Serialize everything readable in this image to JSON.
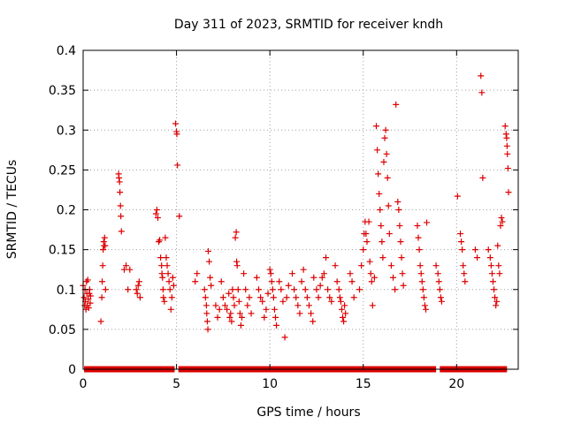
{
  "chart_data": {
    "type": "scatter",
    "title": "Day 311 of 2023, SRMTID for receiver kndh",
    "xlabel": "GPS time / hours",
    "ylabel": "SRMTID / TECUs",
    "xlim": [
      0,
      23.3
    ],
    "ylim": [
      0,
      0.4
    ],
    "xticks": [
      0,
      5,
      10,
      15,
      20
    ],
    "xtick_labels": [
      "0",
      "5",
      "10",
      "15",
      "20"
    ],
    "yticks": [
      0,
      0.05,
      0.1,
      0.15,
      0.2,
      0.25,
      0.3,
      0.35,
      0.4
    ],
    "ytick_labels": [
      "0",
      "0.05",
      "0.1",
      "0.15",
      "0.2",
      "0.25",
      "0.3",
      "0.35",
      "0.4"
    ],
    "grid": true,
    "marker": "plus",
    "color": "#dd0000",
    "zero_band": [
      [
        0.05,
        4.9
      ],
      [
        5.1,
        18.9
      ],
      [
        19.1,
        22.7
      ]
    ],
    "series": [
      {
        "name": "SRMTID",
        "points": [
          [
            0.0,
            0.105
          ],
          [
            0.05,
            0.09
          ],
          [
            0.08,
            0.08
          ],
          [
            0.1,
            0.1
          ],
          [
            0.12,
            0.085
          ],
          [
            0.15,
            0.075
          ],
          [
            0.18,
            0.11
          ],
          [
            0.2,
            0.095
          ],
          [
            0.22,
            0.08
          ],
          [
            0.25,
            0.112
          ],
          [
            0.28,
            0.088
          ],
          [
            0.3,
            0.077
          ],
          [
            0.33,
            0.095
          ],
          [
            0.35,
            0.1
          ],
          [
            0.38,
            0.083
          ],
          [
            0.4,
            0.092
          ],
          [
            0.95,
            0.06
          ],
          [
            1.0,
            0.09
          ],
          [
            1.02,
            0.11
          ],
          [
            1.05,
            0.13
          ],
          [
            1.07,
            0.15
          ],
          [
            1.1,
            0.16
          ],
          [
            1.12,
            0.155
          ],
          [
            1.15,
            0.165
          ],
          [
            1.18,
            0.155
          ],
          [
            1.2,
            0.1
          ],
          [
            1.9,
            0.245
          ],
          [
            1.92,
            0.24
          ],
          [
            1.95,
            0.235
          ],
          [
            1.97,
            0.222
          ],
          [
            2.0,
            0.205
          ],
          [
            2.02,
            0.192
          ],
          [
            2.05,
            0.173
          ],
          [
            2.2,
            0.125
          ],
          [
            2.3,
            0.13
          ],
          [
            2.4,
            0.1
          ],
          [
            2.5,
            0.125
          ],
          [
            2.85,
            0.1
          ],
          [
            2.9,
            0.095
          ],
          [
            2.95,
            0.105
          ],
          [
            3.0,
            0.11
          ],
          [
            3.05,
            0.09
          ],
          [
            3.9,
            0.195
          ],
          [
            3.95,
            0.2
          ],
          [
            4.0,
            0.19
          ],
          [
            4.05,
            0.16
          ],
          [
            4.1,
            0.162
          ],
          [
            4.15,
            0.14
          ],
          [
            4.2,
            0.13
          ],
          [
            4.22,
            0.12
          ],
          [
            4.25,
            0.115
          ],
          [
            4.28,
            0.1
          ],
          [
            4.3,
            0.09
          ],
          [
            4.35,
            0.085
          ],
          [
            4.4,
            0.165
          ],
          [
            4.45,
            0.14
          ],
          [
            4.5,
            0.13
          ],
          [
            4.55,
            0.12
          ],
          [
            4.6,
            0.11
          ],
          [
            4.65,
            0.1
          ],
          [
            4.7,
            0.075
          ],
          [
            4.75,
            0.09
          ],
          [
            4.8,
            0.115
          ],
          [
            4.85,
            0.105
          ],
          [
            4.95,
            0.308
          ],
          [
            5.0,
            0.298
          ],
          [
            5.02,
            0.295
          ],
          [
            5.05,
            0.256
          ],
          [
            5.15,
            0.192
          ],
          [
            6.0,
            0.11
          ],
          [
            6.1,
            0.12
          ],
          [
            6.5,
            0.1
          ],
          [
            6.55,
            0.09
          ],
          [
            6.6,
            0.08
          ],
          [
            6.62,
            0.07
          ],
          [
            6.65,
            0.06
          ],
          [
            6.68,
            0.05
          ],
          [
            6.7,
            0.148
          ],
          [
            6.75,
            0.135
          ],
          [
            6.8,
            0.115
          ],
          [
            6.85,
            0.105
          ],
          [
            7.1,
            0.08
          ],
          [
            7.2,
            0.065
          ],
          [
            7.3,
            0.075
          ],
          [
            7.4,
            0.11
          ],
          [
            7.5,
            0.09
          ],
          [
            7.6,
            0.08
          ],
          [
            7.7,
            0.075
          ],
          [
            7.8,
            0.095
          ],
          [
            7.85,
            0.065
          ],
          [
            7.9,
            0.07
          ],
          [
            7.95,
            0.06
          ],
          [
            8.0,
            0.1
          ],
          [
            8.05,
            0.09
          ],
          [
            8.1,
            0.08
          ],
          [
            8.15,
            0.165
          ],
          [
            8.2,
            0.172
          ],
          [
            8.22,
            0.135
          ],
          [
            8.25,
            0.13
          ],
          [
            8.3,
            0.1
          ],
          [
            8.35,
            0.085
          ],
          [
            8.4,
            0.07
          ],
          [
            8.45,
            0.055
          ],
          [
            8.5,
            0.065
          ],
          [
            8.6,
            0.12
          ],
          [
            8.7,
            0.1
          ],
          [
            8.8,
            0.08
          ],
          [
            8.9,
            0.09
          ],
          [
            9.0,
            0.07
          ],
          [
            9.3,
            0.115
          ],
          [
            9.4,
            0.1
          ],
          [
            9.5,
            0.09
          ],
          [
            9.6,
            0.085
          ],
          [
            9.7,
            0.065
          ],
          [
            9.8,
            0.075
          ],
          [
            9.9,
            0.095
          ],
          [
            10.0,
            0.125
          ],
          [
            10.05,
            0.12
          ],
          [
            10.1,
            0.11
          ],
          [
            10.15,
            0.1
          ],
          [
            10.2,
            0.09
          ],
          [
            10.25,
            0.075
          ],
          [
            10.3,
            0.065
          ],
          [
            10.35,
            0.055
          ],
          [
            10.5,
            0.11
          ],
          [
            10.6,
            0.1
          ],
          [
            10.7,
            0.085
          ],
          [
            10.8,
            0.04
          ],
          [
            10.9,
            0.09
          ],
          [
            11.0,
            0.105
          ],
          [
            11.2,
            0.12
          ],
          [
            11.3,
            0.1
          ],
          [
            11.4,
            0.09
          ],
          [
            11.5,
            0.08
          ],
          [
            11.6,
            0.07
          ],
          [
            11.7,
            0.11
          ],
          [
            11.8,
            0.125
          ],
          [
            11.9,
            0.1
          ],
          [
            12.0,
            0.09
          ],
          [
            12.1,
            0.08
          ],
          [
            12.2,
            0.07
          ],
          [
            12.3,
            0.06
          ],
          [
            12.35,
            0.115
          ],
          [
            12.5,
            0.1
          ],
          [
            12.6,
            0.09
          ],
          [
            12.7,
            0.105
          ],
          [
            12.8,
            0.115
          ],
          [
            12.9,
            0.12
          ],
          [
            13.0,
            0.14
          ],
          [
            13.1,
            0.1
          ],
          [
            13.2,
            0.09
          ],
          [
            13.3,
            0.085
          ],
          [
            13.5,
            0.13
          ],
          [
            13.6,
            0.11
          ],
          [
            13.7,
            0.1
          ],
          [
            13.75,
            0.09
          ],
          [
            13.8,
            0.085
          ],
          [
            13.85,
            0.075
          ],
          [
            13.9,
            0.065
          ],
          [
            13.95,
            0.06
          ],
          [
            14.0,
            0.08
          ],
          [
            14.05,
            0.07
          ],
          [
            14.3,
            0.12
          ],
          [
            14.4,
            0.11
          ],
          [
            14.5,
            0.09
          ],
          [
            14.8,
            0.1
          ],
          [
            14.9,
            0.13
          ],
          [
            15.0,
            0.15
          ],
          [
            15.05,
            0.17
          ],
          [
            15.1,
            0.185
          ],
          [
            15.15,
            0.17
          ],
          [
            15.2,
            0.16
          ],
          [
            15.3,
            0.185
          ],
          [
            15.35,
            0.135
          ],
          [
            15.4,
            0.12
          ],
          [
            15.45,
            0.11
          ],
          [
            15.5,
            0.08
          ],
          [
            15.6,
            0.115
          ],
          [
            15.7,
            0.305
          ],
          [
            15.75,
            0.275
          ],
          [
            15.8,
            0.245
          ],
          [
            15.85,
            0.22
          ],
          [
            15.9,
            0.2
          ],
          [
            15.95,
            0.18
          ],
          [
            16.0,
            0.16
          ],
          [
            16.05,
            0.14
          ],
          [
            16.1,
            0.26
          ],
          [
            16.15,
            0.29
          ],
          [
            16.2,
            0.3
          ],
          [
            16.25,
            0.27
          ],
          [
            16.3,
            0.24
          ],
          [
            16.35,
            0.205
          ],
          [
            16.4,
            0.17
          ],
          [
            16.5,
            0.13
          ],
          [
            16.6,
            0.115
          ],
          [
            16.7,
            0.1
          ],
          [
            16.75,
            0.332
          ],
          [
            16.85,
            0.21
          ],
          [
            16.9,
            0.2
          ],
          [
            16.95,
            0.18
          ],
          [
            17.0,
            0.16
          ],
          [
            17.05,
            0.14
          ],
          [
            17.1,
            0.12
          ],
          [
            17.15,
            0.105
          ],
          [
            17.9,
            0.18
          ],
          [
            17.95,
            0.165
          ],
          [
            18.0,
            0.15
          ],
          [
            18.05,
            0.13
          ],
          [
            18.1,
            0.12
          ],
          [
            18.15,
            0.11
          ],
          [
            18.2,
            0.1
          ],
          [
            18.25,
            0.09
          ],
          [
            18.3,
            0.08
          ],
          [
            18.35,
            0.075
          ],
          [
            18.4,
            0.184
          ],
          [
            18.9,
            0.13
          ],
          [
            19.0,
            0.12
          ],
          [
            19.05,
            0.11
          ],
          [
            19.1,
            0.1
          ],
          [
            19.15,
            0.09
          ],
          [
            19.2,
            0.085
          ],
          [
            20.05,
            0.217
          ],
          [
            20.2,
            0.17
          ],
          [
            20.25,
            0.16
          ],
          [
            20.3,
            0.15
          ],
          [
            20.35,
            0.13
          ],
          [
            20.4,
            0.12
          ],
          [
            20.45,
            0.11
          ],
          [
            21.0,
            0.15
          ],
          [
            21.1,
            0.14
          ],
          [
            21.3,
            0.368
          ],
          [
            21.35,
            0.347
          ],
          [
            21.4,
            0.24
          ],
          [
            21.7,
            0.15
          ],
          [
            21.8,
            0.14
          ],
          [
            21.85,
            0.13
          ],
          [
            21.9,
            0.12
          ],
          [
            21.95,
            0.11
          ],
          [
            22.0,
            0.1
          ],
          [
            22.05,
            0.09
          ],
          [
            22.1,
            0.08
          ],
          [
            22.15,
            0.085
          ],
          [
            22.2,
            0.155
          ],
          [
            22.25,
            0.13
          ],
          [
            22.3,
            0.12
          ],
          [
            22.35,
            0.18
          ],
          [
            22.4,
            0.19
          ],
          [
            22.45,
            0.185
          ],
          [
            22.6,
            0.305
          ],
          [
            22.65,
            0.295
          ],
          [
            22.68,
            0.29
          ],
          [
            22.7,
            0.28
          ],
          [
            22.72,
            0.27
          ],
          [
            22.75,
            0.252
          ],
          [
            22.78,
            0.222
          ]
        ]
      }
    ]
  }
}
